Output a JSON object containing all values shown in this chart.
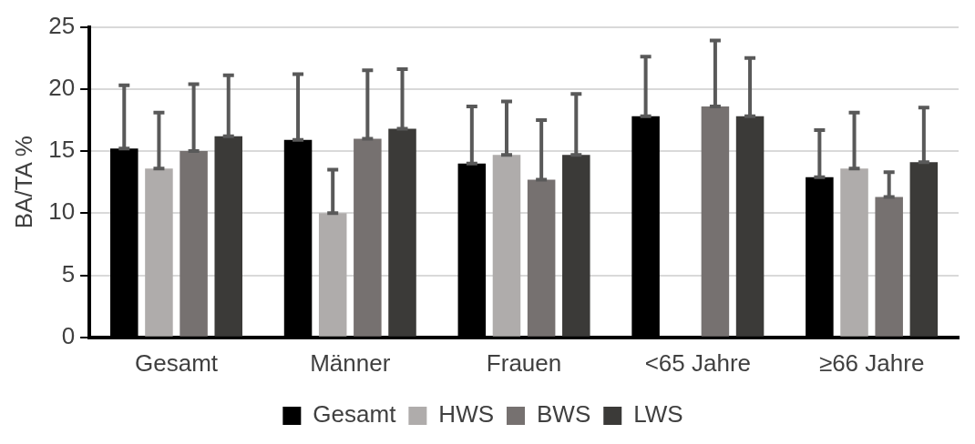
{
  "chart_data": {
    "type": "bar",
    "ylabel": "BA/TA %",
    "categories": [
      "Gesamt",
      "Männer",
      "Frauen",
      "<65 Jahre",
      "≥66 Jahre"
    ],
    "series": [
      {
        "name": "Gesamt",
        "color": "#000000",
        "values": [
          15.2,
          15.9,
          14.0,
          17.8,
          12.9
        ],
        "errors": [
          [
            15.2,
            20.3
          ],
          [
            15.9,
            21.2
          ],
          [
            14.0,
            18.6
          ],
          [
            17.8,
            22.6
          ],
          [
            12.9,
            16.7
          ]
        ]
      },
      {
        "name": "HWS",
        "color": "#afacab",
        "values": [
          13.6,
          10.0,
          14.7,
          null,
          13.6
        ],
        "errors": [
          [
            13.6,
            18.1
          ],
          [
            10.0,
            13.5
          ],
          [
            14.7,
            19.0
          ],
          null,
          [
            13.6,
            18.1
          ]
        ]
      },
      {
        "name": "BWS",
        "color": "#767170",
        "values": [
          15.0,
          16.0,
          12.7,
          18.6,
          11.3
        ],
        "errors": [
          [
            15.0,
            20.4
          ],
          [
            16.0,
            21.5
          ],
          [
            12.7,
            17.5
          ],
          [
            18.6,
            23.9
          ],
          [
            11.3,
            13.3
          ]
        ]
      },
      {
        "name": "LWS",
        "color": "#3b3a38",
        "values": [
          16.2,
          16.8,
          14.7,
          17.8,
          14.1
        ],
        "errors": [
          [
            16.2,
            21.1
          ],
          [
            16.8,
            21.6
          ],
          [
            14.7,
            19.6
          ],
          [
            17.8,
            22.5
          ],
          [
            14.1,
            18.5
          ]
        ]
      }
    ],
    "ylim": [
      0,
      25
    ],
    "yticks": [
      0,
      5,
      10,
      15,
      20,
      25
    ],
    "grid": "y",
    "legend": "bottom"
  }
}
